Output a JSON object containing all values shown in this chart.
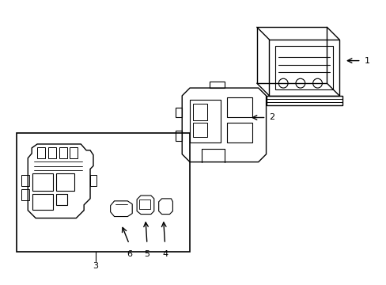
{
  "background_color": "#ffffff",
  "line_color": "#000000",
  "line_width": 1.0,
  "figsize": [
    4.89,
    3.6
  ],
  "dpi": 100,
  "xlim": [
    0,
    489
  ],
  "ylim": [
    0,
    360
  ]
}
